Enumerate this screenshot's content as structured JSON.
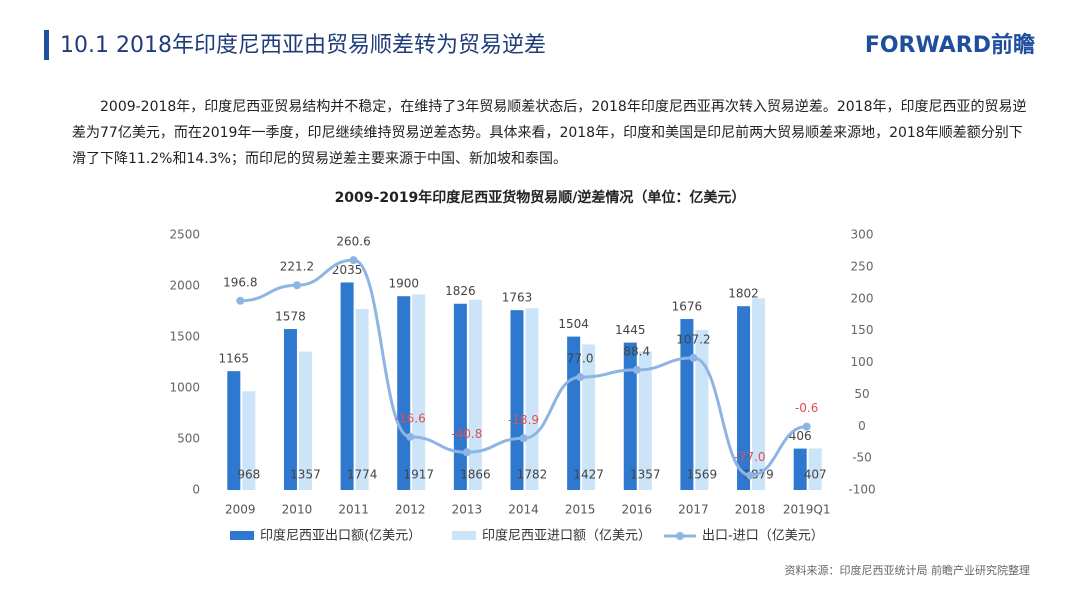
{
  "header": {
    "title": "10.1 2018年印度尼西亚由贸易顺差转为贸易逆差",
    "logo": "FORWARD前瞻"
  },
  "paragraph": "2009-2018年，印度尼西亚贸易结构并不稳定，在维持了3年贸易顺差状态后，2018年印度尼西亚再次转入贸易逆差。2018年，印度尼西亚的贸易逆差为77亿美元，而在2019年一季度，印尼继续维持贸易逆差态势。具体来看，2018年，印度和美国是印尼前两大贸易顺差来源地，2018年顺差额分别下滑了下降11.2%和14.3%；而印尼的贸易逆差主要来源于中国、新加坡和泰国。",
  "source": "资料来源：印度尼西亚统计局  前瞻产业研究院整理",
  "chart_data": {
    "type": "bar-line",
    "title": "2009-2019年印度尼西亚货物贸易顺/逆差情况（单位：亿美元）",
    "categories": [
      "2009",
      "2010",
      "2011",
      "2012",
      "2013",
      "2014",
      "2015",
      "2016",
      "2017",
      "2018",
      "2019Q1"
    ],
    "series": [
      {
        "name": "印度尼西亚出口额(亿美元）",
        "color": "#2f78cf",
        "type": "bar",
        "values": [
          1165,
          1578,
          2035,
          1900,
          1826,
          1763,
          1504,
          1445,
          1676,
          1802,
          406
        ]
      },
      {
        "name": "印度尼西亚进口额（亿美元）",
        "color": "#cce4f8",
        "type": "bar",
        "values": [
          968,
          1357,
          1774,
          1917,
          1866,
          1782,
          1427,
          1357,
          1569,
          1879,
          407
        ]
      },
      {
        "name": "出口-进口（亿美元）",
        "color": "#8db4e2",
        "type": "line",
        "axis": "y2",
        "values": [
          196.8,
          221.2,
          260.6,
          -16.6,
          -40.8,
          -18.9,
          77.0,
          88.4,
          107.2,
          -77.0,
          -0.6
        ],
        "value_labels": [
          "196.8",
          "221.2",
          "260.6",
          "-16.6",
          "-40.8",
          "-18.9",
          "77.0",
          "88.4",
          "107.2",
          "-77.0",
          "-0.6"
        ],
        "negative_color": "#e0504f"
      }
    ],
    "ylim": [
      0,
      2500
    ],
    "yticks": [
      0,
      500,
      1000,
      1500,
      2000,
      2500
    ],
    "y2lim": [
      -100,
      300
    ],
    "y2ticks": [
      -100,
      -50,
      0,
      50,
      100,
      150,
      200,
      250,
      300
    ]
  }
}
